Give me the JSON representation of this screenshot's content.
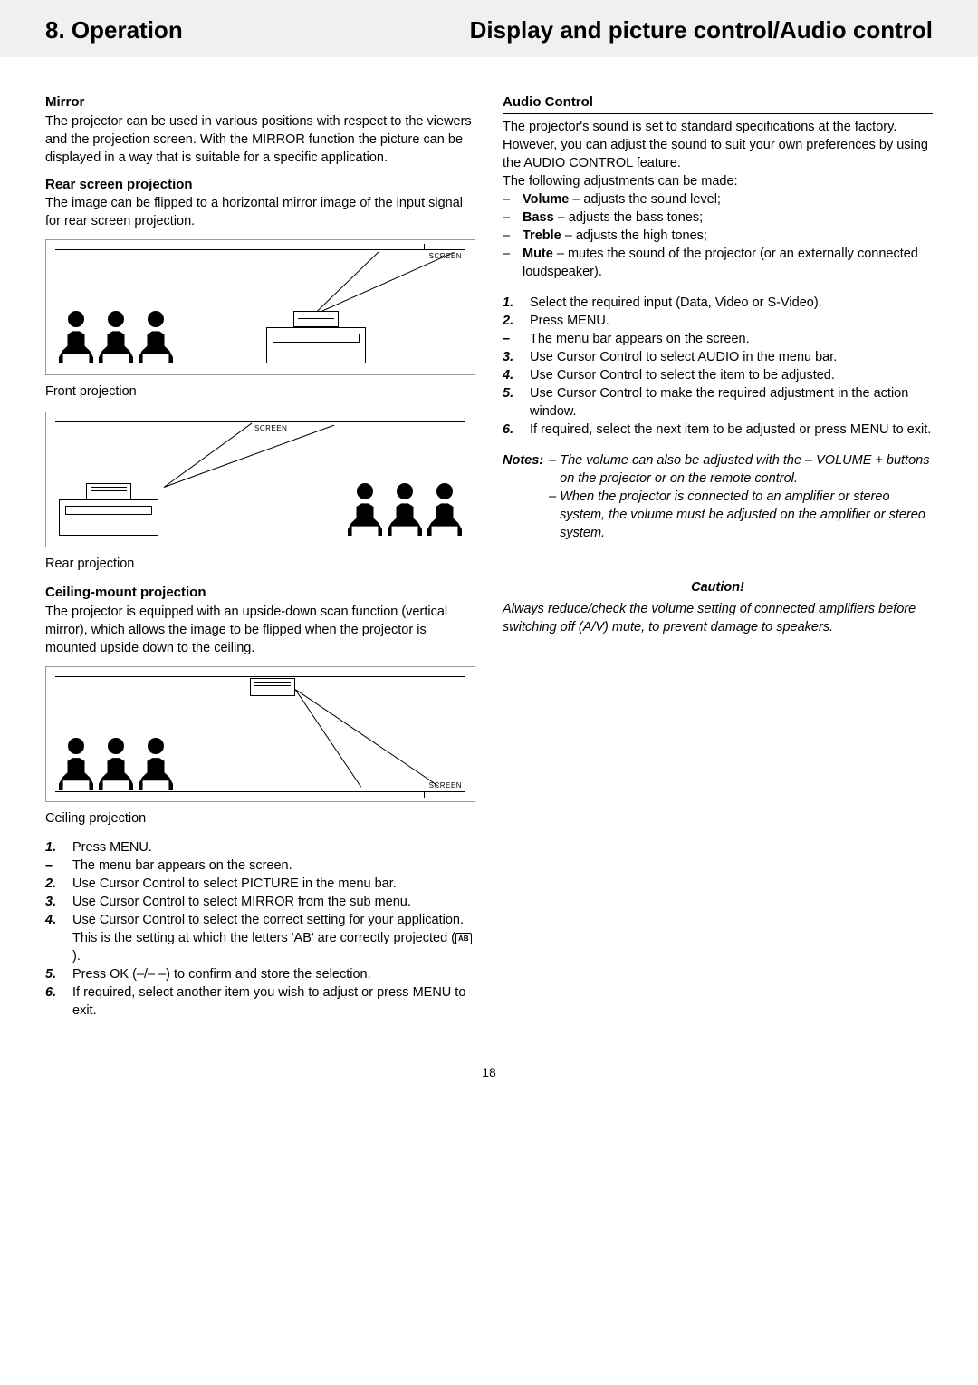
{
  "header": {
    "left": "8. Operation",
    "right": "Display and picture control/Audio control"
  },
  "left": {
    "mirror_heading": "Mirror",
    "mirror_text": "The projector can be used in various positions with respect to the viewers and the projection screen. With the MIRROR function the picture can be displayed in a way that is suitable for a specific application.",
    "rear_heading": "Rear screen projection",
    "rear_text": "The image can be flipped to a horizontal mirror image of the input signal for rear screen projection.",
    "fig1_label": "SCREEN",
    "caption1": "Front projection",
    "fig2_label": "SCREEN",
    "caption2": "Rear projection",
    "ceiling_heading": "Ceiling-mount projection",
    "ceiling_text": "The projector is equipped with an upside-down scan function (vertical mirror), which allows the image to be flipped when the projector is mounted upside down to the ceiling.",
    "fig3_label": "SCREEN",
    "caption3": "Ceiling projection",
    "steps": [
      {
        "m": "1.",
        "t": "Press MENU."
      },
      {
        "m": "–",
        "t": "The menu bar appears on the screen."
      },
      {
        "m": "2.",
        "t": "Use Cursor Control to select PICTURE in the menu bar."
      },
      {
        "m": "3.",
        "t": "Use Cursor Control to select MIRROR from the sub menu."
      },
      {
        "m": "4.",
        "t": "Use Cursor Control to select the correct setting for your application. This is the setting at which the letters 'AB' are correctly projected (",
        "ab": true,
        "t2": ")."
      },
      {
        "m": "5.",
        "t": "Press OK (–/– –) to confirm and store the selection."
      },
      {
        "m": "6.",
        "t": "If required, select another item you wish to adjust or press MENU to exit."
      }
    ]
  },
  "right": {
    "audio_heading": "Audio Control",
    "audio_text": "The projector's sound is set to standard specifications at the factory. However, you can adjust the sound to suit your own preferences by using the AUDIO CONTROL feature.",
    "audio_text2": "The following adjustments can be made:",
    "adjustments": [
      {
        "b": "Volume",
        "t": " – adjusts the sound level;"
      },
      {
        "b": "Bass",
        "t": " – adjusts the bass tones;"
      },
      {
        "b": "Treble",
        "t": " – adjusts the high tones;"
      },
      {
        "b": "Mute",
        "t": " – mutes the sound of the projector (or an externally connected loudspeaker)."
      }
    ],
    "steps": [
      {
        "m": "1.",
        "t": "Select the required input (Data, Video or S-Video)."
      },
      {
        "m": "2.",
        "t": "Press MENU."
      },
      {
        "m": "–",
        "t": "The menu bar appears on the screen."
      },
      {
        "m": "3.",
        "t": "Use Cursor Control to select AUDIO in the menu bar."
      },
      {
        "m": "4.",
        "t": "Use Cursor Control to select the item to be adjusted."
      },
      {
        "m": "5.",
        "t": "Use Cursor Control to make the required adjustment in the action window."
      },
      {
        "m": "6.",
        "t": "If required, select the next item to be adjusted or press MENU to exit."
      }
    ],
    "notes_label": "Notes:",
    "notes": [
      "– The volume can also be adjusted with the – VOLUME + buttons on the projector or on the remote control.",
      "– When the projector is connected to an amplifier or stereo system, the volume must be adjusted on the amplifier or stereo system."
    ],
    "caution_label": "Caution!",
    "caution_text": "Always reduce/check the volume setting of connected amplifiers before switching off (A/V) mute, to prevent damage to speakers."
  },
  "page_num": "18"
}
